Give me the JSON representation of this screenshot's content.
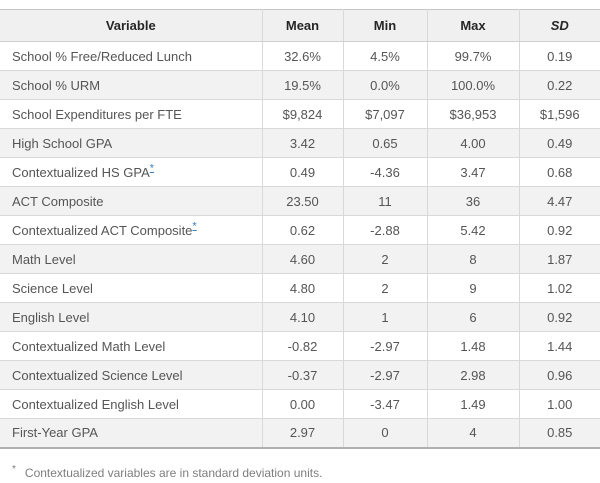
{
  "chart_data": {
    "type": "table",
    "columns": [
      "Variable",
      "Mean",
      "Min",
      "Max",
      "SD"
    ],
    "rows": [
      {
        "variable": "School % Free/Reduced Lunch",
        "marker": "",
        "mean": "32.6%",
        "min": "4.5%",
        "max": "99.7%",
        "sd": "0.19"
      },
      {
        "variable": "School % URM",
        "marker": "",
        "mean": "19.5%",
        "min": "0.0%",
        "max": "100.0%",
        "sd": "0.22"
      },
      {
        "variable": "School Expenditures per FTE",
        "marker": "",
        "mean": "$9,824",
        "min": "$7,097",
        "max": "$36,953",
        "sd": "$1,596"
      },
      {
        "variable": "High School GPA",
        "marker": "",
        "mean": "3.42",
        "min": "0.65",
        "max": "4.00",
        "sd": "0.49"
      },
      {
        "variable": "Contextualized HS GPA",
        "marker": "*",
        "mean": "0.49",
        "min": "-4.36",
        "max": "3.47",
        "sd": "0.68"
      },
      {
        "variable": "ACT Composite",
        "marker": "",
        "mean": "23.50",
        "min": "11",
        "max": "36",
        "sd": "4.47"
      },
      {
        "variable": "Contextualized ACT Composite",
        "marker": "*",
        "mean": "0.62",
        "min": "-2.88",
        "max": "5.42",
        "sd": "0.92"
      },
      {
        "variable": "Math Level",
        "marker": "",
        "mean": "4.60",
        "min": "2",
        "max": "8",
        "sd": "1.87"
      },
      {
        "variable": "Science Level",
        "marker": "",
        "mean": "4.80",
        "min": "2",
        "max": "9",
        "sd": "1.02"
      },
      {
        "variable": "English Level",
        "marker": "",
        "mean": "4.10",
        "min": "1",
        "max": "6",
        "sd": "0.92"
      },
      {
        "variable": "Contextualized Math Level",
        "marker": "",
        "mean": "-0.82",
        "min": "-2.97",
        "max": "1.48",
        "sd": "1.44"
      },
      {
        "variable": "Contextualized Science Level",
        "marker": "",
        "mean": "-0.37",
        "min": "-2.97",
        "max": "2.98",
        "sd": "0.96"
      },
      {
        "variable": "Contextualized English Level",
        "marker": "",
        "mean": "0.00",
        "min": "-3.47",
        "max": "1.49",
        "sd": "1.00"
      },
      {
        "variable": "First-Year GPA",
        "marker": "",
        "mean": "2.97",
        "min": "0",
        "max": "4",
        "sd": "0.85"
      }
    ]
  },
  "footnote": {
    "marker": "*",
    "text": "Contextualized variables are in standard deviation units."
  },
  "colors": {
    "header_bg": "#f0f0f0",
    "stripe_bg": "#f2f2f2",
    "border": "#d9d9d9",
    "strong_border": "#b0b0b0",
    "text": "#555555",
    "header_text": "#262626",
    "link": "#3d7ebd",
    "footnote_text": "#7d7d7d"
  }
}
